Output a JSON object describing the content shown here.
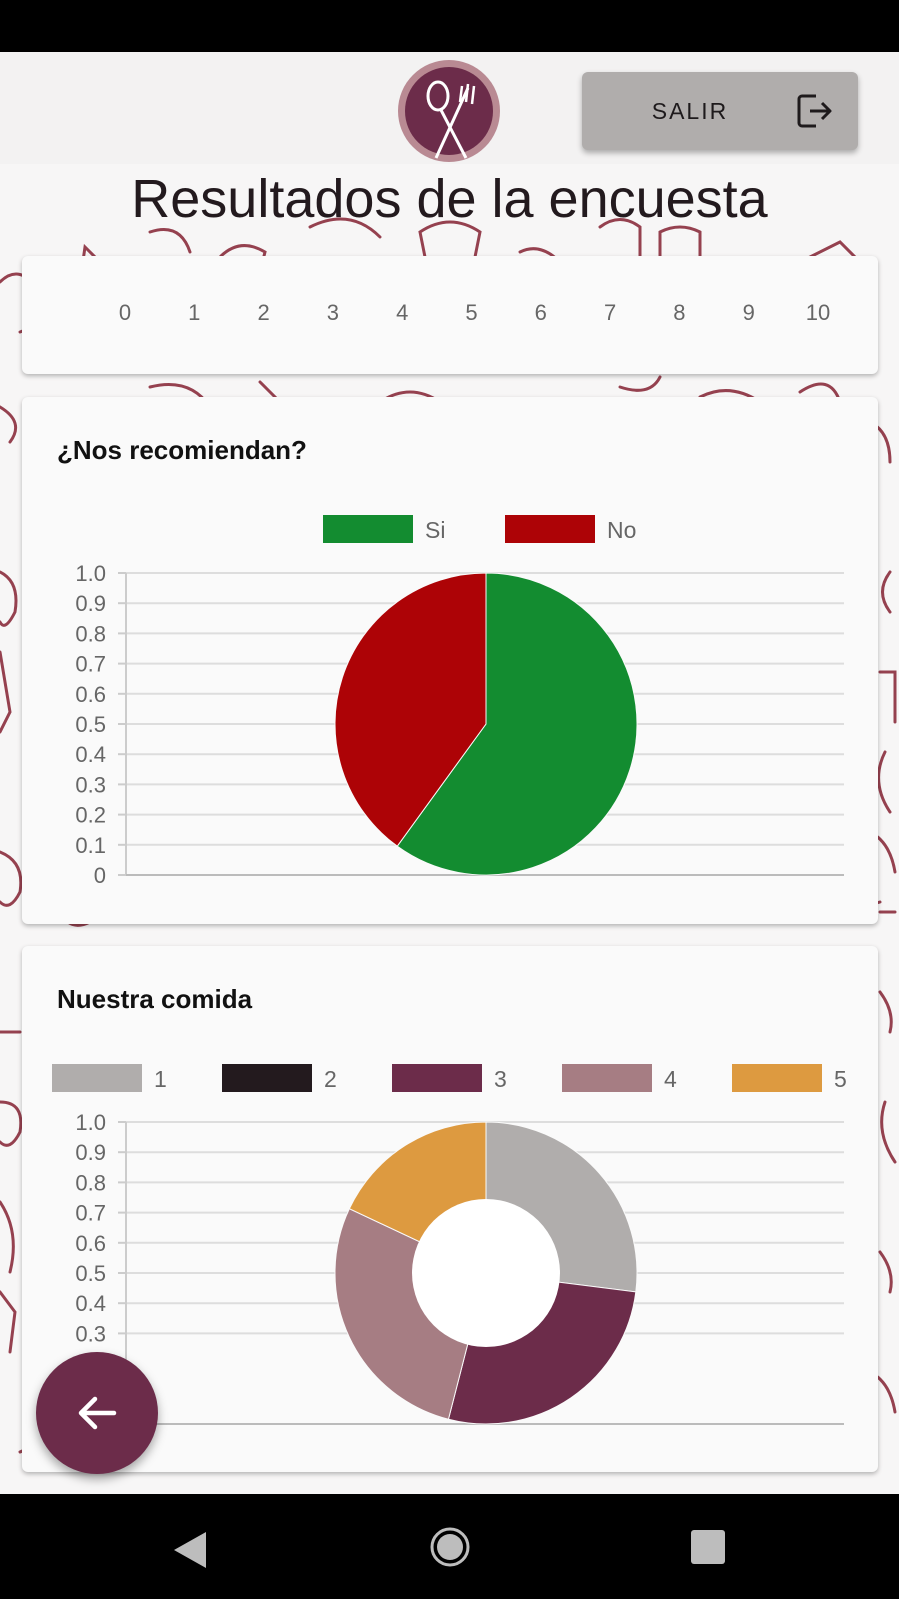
{
  "header": {
    "exit_label": "SALIR",
    "logo_icon": "fork-spoon-logo-icon",
    "exit_icon": "logout-icon"
  },
  "page": {
    "title": "Resultados de la encuesta"
  },
  "colors": {
    "brand": "#6c2c4a",
    "doodle": "#8b2e3e",
    "si": "#138c30",
    "no": "#ad0306"
  },
  "partial_chart": {
    "x_ticks": [
      "0",
      "1",
      "2",
      "3",
      "4",
      "5",
      "6",
      "7",
      "8",
      "9",
      "10"
    ]
  },
  "chart_data": [
    {
      "type": "pie",
      "title": "¿Nos recomiendan?",
      "categories": [
        "Si",
        "No"
      ],
      "values": [
        0.6,
        0.4
      ],
      "colors": [
        "#138c30",
        "#ad0306"
      ],
      "y_ticks": [
        "1.0",
        "0.9",
        "0.8",
        "0.7",
        "0.6",
        "0.5",
        "0.4",
        "0.3",
        "0.2",
        "0.1",
        "0"
      ],
      "ylim": [
        0,
        1
      ],
      "grid": true,
      "legend": "top-center"
    },
    {
      "type": "pie",
      "title": "Nuestra comida",
      "categories": [
        "1",
        "2",
        "3",
        "4",
        "5"
      ],
      "values": [
        0.27,
        0.0,
        0.27,
        0.28,
        0.18
      ],
      "colors": [
        "#b0adac",
        "#231a1e",
        "#6c2c4a",
        "#a67d83",
        "#dd9a40"
      ],
      "y_ticks": [
        "1.0",
        "0.9",
        "0.8",
        "0.7",
        "0.6",
        "0.5",
        "0.4",
        "0.3"
      ],
      "ylim": [
        0,
        1
      ],
      "grid": true,
      "legend": "top-center",
      "donut": true
    }
  ],
  "fab": {
    "icon": "arrow-back-icon"
  },
  "nav": {
    "back_icon": "nav-back-icon",
    "home_icon": "nav-home-icon",
    "recent_icon": "nav-recent-icon"
  }
}
